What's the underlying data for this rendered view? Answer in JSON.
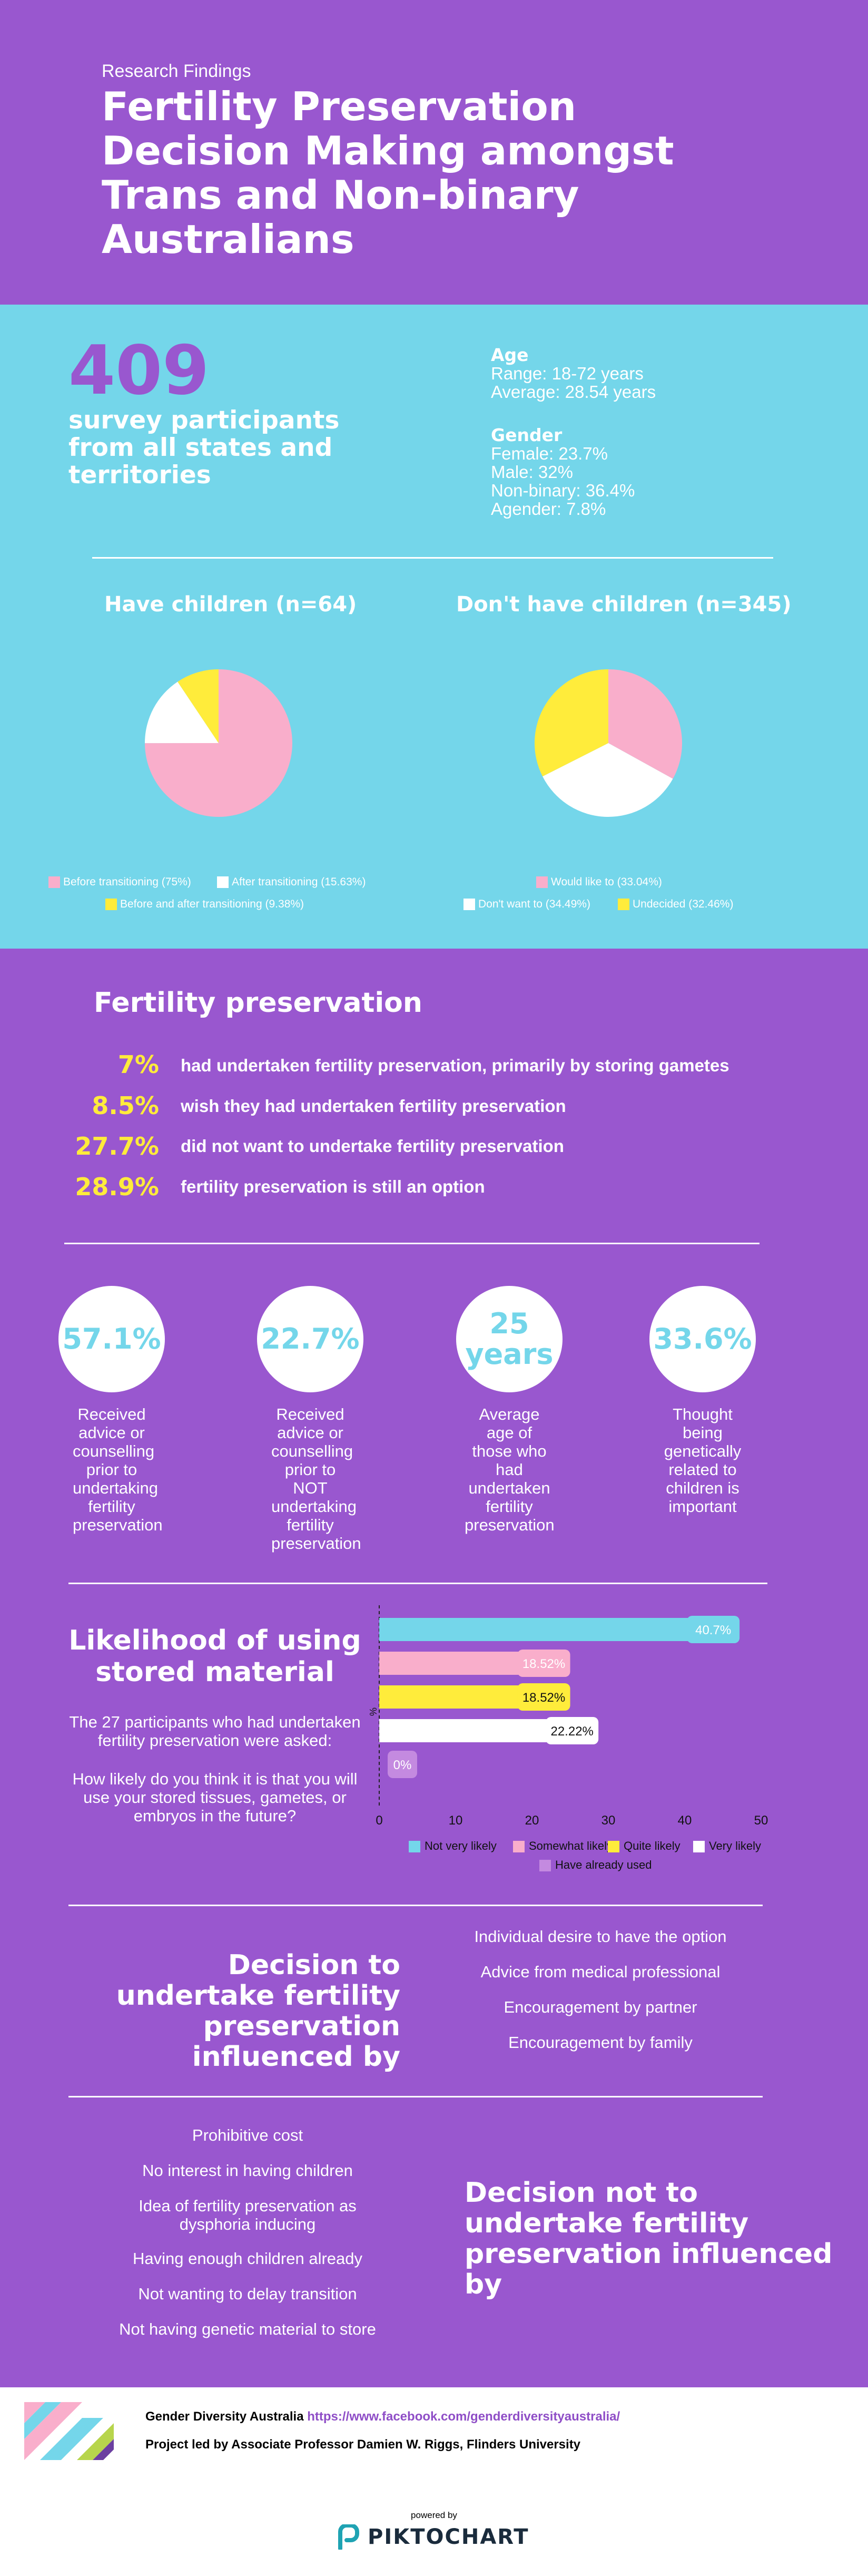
{
  "header": {
    "kicker": "Research Findings",
    "title": "Fertility Preservation Decision Making amongst Trans and Non-binary Australians"
  },
  "participants": {
    "count": "409",
    "text": "survey participants from all states and territories"
  },
  "age": {
    "heading": "Age",
    "range": "Range: 18-72 years",
    "average": "Average: 28.54 years"
  },
  "gender": {
    "heading": "Gender",
    "female": "Female: 23.7%",
    "male": "Male: 32%",
    "nonbinary": "Non-binary: 36.4%",
    "agender": "Agender: 7.8%"
  },
  "have_children": {
    "title": "Have children (n=64)",
    "legend": [
      "Before transitioning (75%)",
      "After transitioning (15.63%)",
      "Before and after transitioning (9.38%)"
    ]
  },
  "no_children": {
    "title": "Don't have children (n=345)",
    "legend": [
      "Would like to (33.04%)",
      "Don't want to (34.49%)",
      "Undecided (32.46%)"
    ]
  },
  "colors": {
    "purple": "#9957cf",
    "cyan": "#74d6ea",
    "pink": "#f9aecb",
    "yellow": "#ffec3b",
    "white": "#ffffff",
    "lavender": "#c48ae0"
  },
  "fertility": {
    "title": "Fertility preservation",
    "stats": [
      {
        "pct": "7%",
        "text": "had undertaken fertility preservation, primarily by storing gametes"
      },
      {
        "pct": "8.5%",
        "text": "wish they had undertaken fertility preservation"
      },
      {
        "pct": "27.7%",
        "text": "did not want to undertake fertility preservation"
      },
      {
        "pct": "28.9%",
        "text": "fertility preservation is still an option"
      }
    ]
  },
  "circles": [
    {
      "value": "57.1%",
      "caption": "Received advice or counselling prior to undertaking fertility preservation"
    },
    {
      "value": "22.7%",
      "caption": "Received advice or counselling prior to NOT undertaking fertility preservation"
    },
    {
      "value": "25 years",
      "caption": "Average age of those who had undertaken fertility preservation"
    },
    {
      "value": "33.6%",
      "caption": "Thought being genetically related to children is important"
    }
  ],
  "likelihood": {
    "title": "Likelihood of using stored material",
    "sub1": "The 27 participants who had undertaken fertility preservation were asked:",
    "sub2": "How likely do you think it is that you will use your stored tissues, gametes, or embryos in the future?"
  },
  "chart_data": [
    {
      "type": "pie",
      "title": "Have children (n=64)",
      "labels": [
        "Before transitioning",
        "After transitioning",
        "Before and after transitioning"
      ],
      "values": [
        75,
        15.63,
        9.38
      ],
      "colors": [
        "#f9aecb",
        "#ffffff",
        "#ffec3b"
      ]
    },
    {
      "type": "pie",
      "title": "Don't have children (n=345)",
      "labels": [
        "Would like to",
        "Don't want to",
        "Undecided"
      ],
      "values": [
        33.04,
        34.49,
        32.46
      ],
      "colors": [
        "#f9aecb",
        "#ffffff",
        "#ffec3b"
      ]
    },
    {
      "type": "bar",
      "orientation": "horizontal",
      "categories": [
        "Not very likely",
        "Somewhat likely",
        "Quite likely",
        "Very likely",
        "Have already used"
      ],
      "values": [
        40.7,
        18.52,
        18.52,
        22.22,
        0
      ],
      "value_labels": [
        "40.7%",
        "18.52%",
        "18.52%",
        "22.22%",
        "0%"
      ],
      "colors": [
        "#74d6ea",
        "#f9aecb",
        "#ffec3b",
        "#ffffff",
        "#c48ae0"
      ],
      "ylabel": "%",
      "xlim": [
        0,
        50
      ],
      "xticks": [
        "0",
        "10",
        "20",
        "30",
        "40",
        "50"
      ],
      "legend": [
        "Not very likely",
        "Somewhat likely",
        "Quite likely",
        "Very likely",
        "Have already used"
      ]
    }
  ],
  "decision_yes": {
    "title": "Decision to undertake fertility preservation influenced by",
    "items": [
      "Individual desire to have the option",
      "Advice from medical professional",
      "Encouragement by partner",
      "Encouragement by family"
    ]
  },
  "decision_no": {
    "title": "Decision not to undertake fertility preservation influenced by",
    "items": [
      "Prohibitive cost",
      "No interest in having children",
      "Idea of fertility preservation as dysphoria inducing",
      "Having enough children already",
      "Not wanting to delay transition",
      "Not having genetic material to store"
    ]
  },
  "footer": {
    "org": "Gender Diversity Australia",
    "url": "https://www.facebook.com/genderdiversityaustralia/",
    "lead": "Project led by Associate Professor Damien W. Riggs, Flinders University",
    "powered": "powered by",
    "brand": "PIKTOCHART"
  }
}
